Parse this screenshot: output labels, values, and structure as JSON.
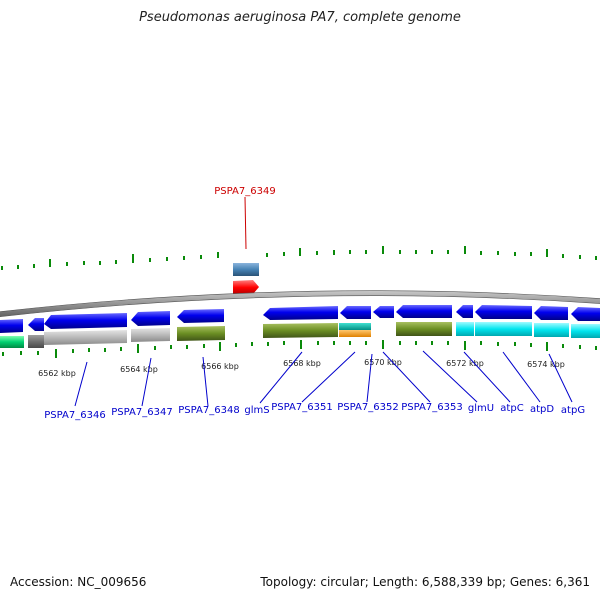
{
  "title": "Pseudomonas aeruginosa PA7, complete genome",
  "highlight_gene": {
    "label": "PSPA7_6349",
    "color": "#ff0000"
  },
  "ruler_labels": [
    "6562 kbp",
    "6564 kbp",
    "6566 kbp",
    "6568 kbp",
    "6570 kbp",
    "6572 kbp",
    "6574 kbp"
  ],
  "gene_labels": [
    "PSPA7_6346",
    "PSPA7_6347",
    "PSPA7_6348",
    "glmS",
    "PSPA7_6351",
    "PSPA7_6352",
    "PSPA7_6353",
    "glmU",
    "atpC",
    "atpD",
    "atpG"
  ],
  "colors": {
    "gene_blue": "#0000ee",
    "label_blue": "#0000cc",
    "olive": "#6b8e23",
    "cyan": "#00e5ee",
    "grey": "#b0b0b0",
    "orange": "#ff9900",
    "teal": "#00b2a0",
    "steel": "#4682b4",
    "green": "#00a000"
  },
  "footer": {
    "accession": "Accession: NC_009656",
    "info": "Topology: circular; Length: 6,588,339 bp; Genes: 6,361"
  }
}
